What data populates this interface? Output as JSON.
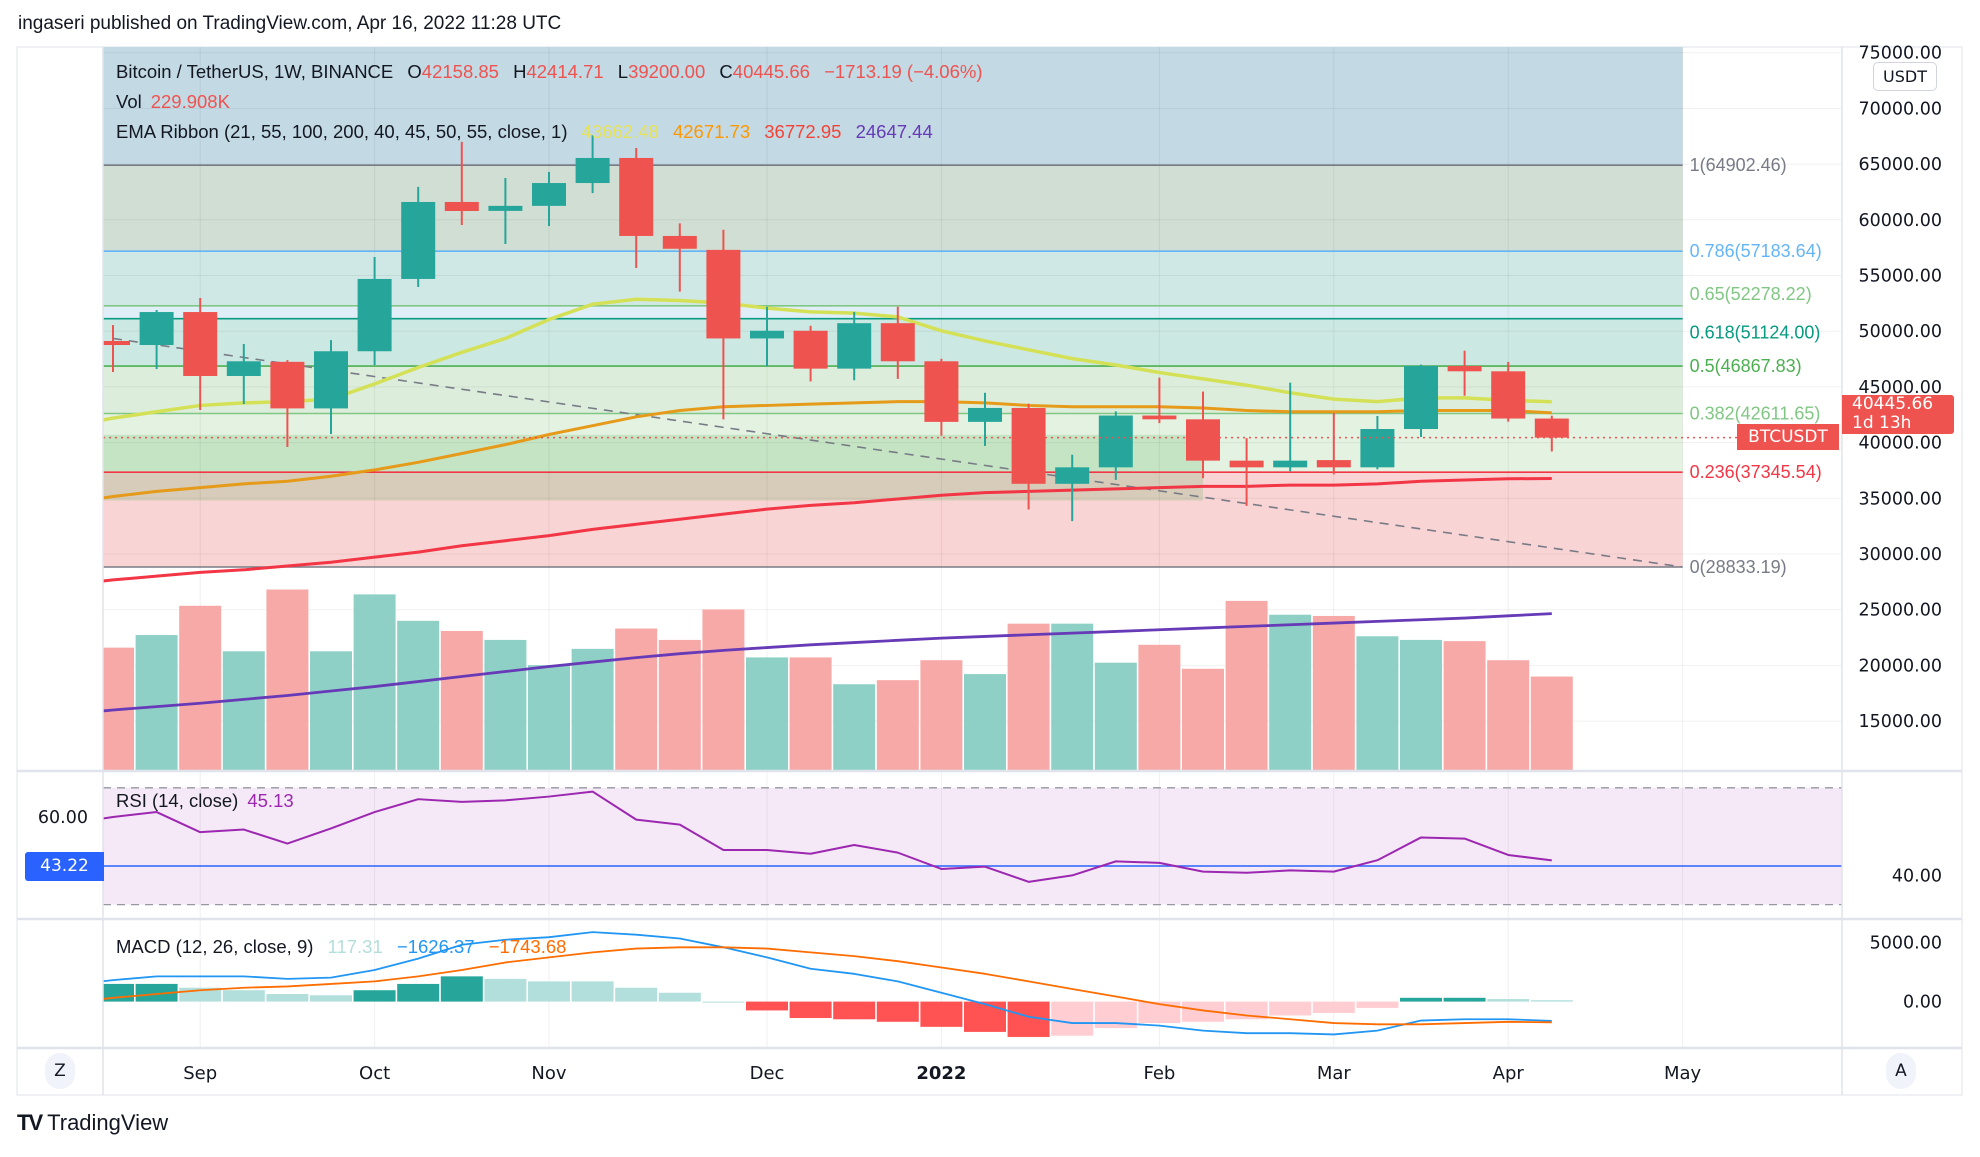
{
  "header": {
    "published": "ingaseri published on TradingView.com, Apr 16, 2022 11:28 UTC"
  },
  "legend": {
    "symbol": "Bitcoin / TetherUS, 1W, BINANCE",
    "o_label": "O",
    "o": "42158.85",
    "h_label": "H",
    "h": "42414.71",
    "l_label": "L",
    "l": "39200.00",
    "c_label": "C",
    "c": "40445.66",
    "change": "−1713.19 (−4.06%)",
    "vol_label": "Vol",
    "vol": "229.908K",
    "ema_label": "EMA Ribbon (21, 55, 100, 200, 40, 45, 50, 55, close, 1)",
    "ema_values": [
      "43662.48",
      "42671.73",
      "36772.95",
      "24647.44"
    ]
  },
  "price_axis": {
    "currency": "USDT",
    "ticks": [
      "75000.00",
      "70000.00",
      "65000.00",
      "60000.00",
      "55000.00",
      "50000.00",
      "45000.00",
      "40000.00",
      "35000.00",
      "30000.00",
      "25000.00",
      "20000.00",
      "15000.00"
    ],
    "last_price": "40445.66",
    "countdown": "1d 13h",
    "symbol_tag": "BTCUSDT"
  },
  "rsi": {
    "label": "RSI (14, close)",
    "value": "45.13",
    "axis_ticks": [
      "60.00",
      "40.00"
    ],
    "tag": "43.22"
  },
  "macd": {
    "label": "MACD (12, 26, close, 9)",
    "histogram": "117.31",
    "macd": "−1626.37",
    "signal": "−1743.68",
    "axis_ticks": [
      "5000.00",
      "0.00"
    ]
  },
  "time_axis": {
    "labels": [
      {
        "label": "Sep",
        "date": "2021-09-06",
        "bold": false
      },
      {
        "label": "Oct",
        "date": "2021-10-04",
        "bold": false
      },
      {
        "label": "Nov",
        "date": "2021-11-01",
        "bold": false
      },
      {
        "label": "Dec",
        "date": "2021-12-06",
        "bold": false
      },
      {
        "label": "2022",
        "date": "2022-01-03",
        "bold": true
      },
      {
        "label": "Feb",
        "date": "2022-02-07",
        "bold": false
      },
      {
        "label": "Mar",
        "date": "2022-03-07",
        "bold": false
      },
      {
        "label": "Apr",
        "date": "2022-04-04",
        "bold": false
      },
      {
        "label": "May",
        "date": "2022-05-02",
        "bold": false
      }
    ],
    "left_button": "Z",
    "right_button": "A"
  },
  "footer": {
    "logo_text": "TradingView"
  },
  "colors": {
    "up": "#26a69a",
    "down": "#ef5350",
    "ema21": "#d4e157",
    "ema55": "#e69a1a",
    "ema100": "#f23645",
    "ema200": "#673ab7",
    "ema_legend": [
      "#e6e35a",
      "#ff9800",
      "#f44336",
      "#673ab7"
    ],
    "rsi_line": "#9c27b0",
    "rsi_ma": "#2962ff",
    "macd_line": "#2196f3",
    "signal_line": "#ff6d00"
  },
  "chart_data": {
    "type": "candlestick",
    "interval": "1W",
    "price_range": [
      12000,
      76000
    ],
    "grid": true,
    "dates": [
      "2021-08-23",
      "2021-08-30",
      "2021-09-06",
      "2021-09-13",
      "2021-09-20",
      "2021-09-27",
      "2021-10-04",
      "2021-10-11",
      "2021-10-18",
      "2021-10-25",
      "2021-11-01",
      "2021-11-08",
      "2021-11-15",
      "2021-11-22",
      "2021-11-29",
      "2021-12-06",
      "2021-12-13",
      "2021-12-20",
      "2021-12-27",
      "2022-01-03",
      "2022-01-10",
      "2022-01-17",
      "2022-01-24",
      "2022-01-31",
      "2022-02-07",
      "2022-02-14",
      "2022-02-21",
      "2022-02-28",
      "2022-03-07",
      "2022-03-14",
      "2022-03-21",
      "2022-03-28",
      "2022-04-04",
      "2022-04-11"
    ],
    "ohlc": [
      [
        49120,
        50550,
        46340,
        48760
      ],
      [
        48760,
        51900,
        46600,
        51720
      ],
      [
        51720,
        52980,
        42930,
        45980
      ],
      [
        45980,
        48850,
        43460,
        47300
      ],
      [
        47250,
        47400,
        39600,
        43070
      ],
      [
        43070,
        49200,
        40770,
        48200
      ],
      [
        48200,
        56660,
        46970,
        54690
      ],
      [
        54690,
        62950,
        53970,
        61600
      ],
      [
        61600,
        66990,
        59530,
        60790
      ],
      [
        60800,
        63750,
        57830,
        61250
      ],
      [
        61250,
        64300,
        59440,
        63300
      ],
      [
        63300,
        67600,
        62400,
        65550
      ],
      [
        65550,
        66450,
        55670,
        58550
      ],
      [
        58550,
        59680,
        53550,
        57400
      ],
      [
        57300,
        59110,
        42090,
        49350
      ],
      [
        49350,
        52190,
        46850,
        50040
      ],
      [
        50040,
        50490,
        45490,
        46640
      ],
      [
        46640,
        51730,
        45600,
        50720
      ],
      [
        50720,
        52190,
        45720,
        47300
      ],
      [
        47300,
        47530,
        40610,
        41860
      ],
      [
        41860,
        44470,
        39700,
        43110
      ],
      [
        43110,
        43500,
        34000,
        36300
      ],
      [
        36300,
        38910,
        32950,
        37780
      ],
      [
        37780,
        42800,
        36650,
        42430
      ],
      [
        42430,
        45830,
        41750,
        42090
      ],
      [
        42090,
        44580,
        36800,
        38380
      ],
      [
        38380,
        40400,
        34320,
        37780
      ],
      [
        37780,
        45380,
        37430,
        38380
      ],
      [
        38430,
        42660,
        37150,
        37780
      ],
      [
        37780,
        42390,
        37600,
        41220
      ],
      [
        41220,
        47000,
        40500,
        46880
      ],
      [
        46880,
        48250,
        44210,
        46400
      ],
      [
        46400,
        47240,
        41880,
        42160
      ],
      [
        42158.85,
        42414.71,
        39200,
        40445.66
      ]
    ],
    "volume_k": [
      301,
      332,
      404,
      292,
      444,
      292,
      432,
      367,
      342,
      320,
      258,
      298,
      348,
      320,
      395,
      277,
      277,
      211,
      221,
      270,
      236,
      360,
      360,
      264,
      308,
      249,
      416,
      382,
      379,
      329,
      320,
      317,
      270,
      229.908
    ],
    "ema": {
      "ema21": [
        42201,
        42769,
        43336,
        43563,
        43677,
        43904,
        45266,
        46741,
        48103,
        49352,
        51054,
        52416,
        52870,
        52757,
        52530,
        52076,
        51735,
        51622,
        51281,
        50033,
        49125,
        48330,
        47536,
        46968,
        46287,
        45720,
        45152,
        44471,
        43904,
        43677,
        44017,
        44017,
        43790,
        43662.48
      ],
      "ema55": [
        35164,
        35618,
        35959,
        36299,
        36526,
        36980,
        37548,
        38229,
        39023,
        39818,
        40726,
        41520,
        42315,
        42882,
        43223,
        43336,
        43450,
        43563,
        43677,
        43677,
        43563,
        43336,
        43223,
        43223,
        43223,
        43109,
        42882,
        42769,
        42769,
        42769,
        42882,
        42882,
        42882,
        42671.73
      ],
      "ema100": [
        27673,
        28014,
        28354,
        28581,
        28922,
        29262,
        29716,
        30170,
        30738,
        31192,
        31646,
        32213,
        32667,
        33121,
        33575,
        34029,
        34370,
        34597,
        34937,
        35278,
        35505,
        35618,
        35732,
        35845,
        35959,
        36072,
        36072,
        36186,
        36186,
        36299,
        36526,
        36640,
        36753,
        36772.95
      ],
      "ema200": [
        16000,
        16300,
        16600,
        16950,
        17300,
        17700,
        18100,
        18550,
        19000,
        19450,
        19900,
        20300,
        20700,
        21050,
        21350,
        21600,
        21850,
        22050,
        22250,
        22450,
        22600,
        22750,
        22900,
        23050,
        23200,
        23350,
        23500,
        23650,
        23800,
        23950,
        24100,
        24250,
        24450,
        24647.44
      ]
    },
    "fibonacci": [
      {
        "level": "1",
        "price": 64902.46,
        "label": "1(64902.46)",
        "color": "#787b86",
        "fill": "#d0ded3"
      },
      {
        "level": "0.786",
        "price": 57183.64,
        "label": "0.786(57183.64)",
        "color": "#64b5f6",
        "fill": "#cfe8e5"
      },
      {
        "level": "0.65",
        "price": 52278.22,
        "label": "0.65(52278.22)",
        "color": "#81c784",
        "fill": "#e0eef8"
      },
      {
        "level": "0.618",
        "price": 51124.0,
        "label": "0.618(51124.00)",
        "color": "#089981",
        "fill": "#cce8e2"
      },
      {
        "level": "0.5",
        "price": 46867.83,
        "label": "0.5(46867.83)",
        "color": "#4caf50",
        "fill": "#dceedb"
      },
      {
        "level": "0.382",
        "price": 42611.65,
        "label": "0.382(42611.65)",
        "color": "#81c784",
        "fill": "#e4f2e2"
      },
      {
        "level": "0.236",
        "price": 37345.54,
        "label": "0.236(37345.54)",
        "color": "#f23645",
        "fill": "#f9d4d4"
      },
      {
        "level": "0",
        "price": 28833.19,
        "label": "0(28833.19)",
        "color": "#787b86",
        "fill": null
      }
    ],
    "fib_top_fill": "#c3d9e4",
    "fib_end_date": "2022-05-02",
    "zone_box": {
      "price_top": 40700,
      "price_bottom": 34800,
      "end_date": "2022-02-14",
      "fill": "rgba(76,175,80,0.2)"
    },
    "trendline": {
      "from": [
        "2021-08-23",
        49350
      ],
      "to": [
        "2022-05-02",
        28830
      ],
      "style": "dashed",
      "color": "#787b86"
    },
    "rsi": {
      "values": [
        60,
        61.7,
        54.8,
        55.7,
        50.9,
        56.1,
        61.7,
        66.1,
        65.2,
        65.7,
        67.0,
        68.7,
        59.1,
        57.4,
        48.7,
        48.7,
        47.4,
        50.4,
        47.8,
        42.2,
        43.0,
        37.8,
        40.0,
        44.8,
        44.3,
        41.3,
        40.9,
        41.7,
        41.3,
        45.2,
        53.0,
        52.6,
        47.0,
        45.13
      ],
      "ma": 43.22,
      "upper_band": 70,
      "lower_band": 30
    },
    "macd": {
      "macd": [
        1809,
        2128,
        2128,
        2128,
        1915,
        2021,
        2660,
        3617,
        4787,
        5213,
        5426,
        5851,
        5638,
        5319,
        4574,
        3723,
        2766,
        2340,
        1702,
        745,
        -213,
        -1277,
        -1809,
        -1809,
        -2021,
        -2447,
        -2660,
        -2660,
        -2766,
        -2447,
        -1596,
        -1489,
        -1489,
        -1626.37
      ],
      "signal": [
        319,
        638,
        957,
        1170,
        1277,
        1489,
        1702,
        2128,
        2660,
        3298,
        3723,
        4149,
        4468,
        4574,
        4574,
        4468,
        4149,
        3830,
        3404,
        2872,
        2340,
        1702,
        1064,
        426,
        -213,
        -745,
        -1170,
        -1489,
        -1809,
        -1915,
        -1915,
        -1809,
        -1702,
        -1743.68
      ]
    }
  }
}
